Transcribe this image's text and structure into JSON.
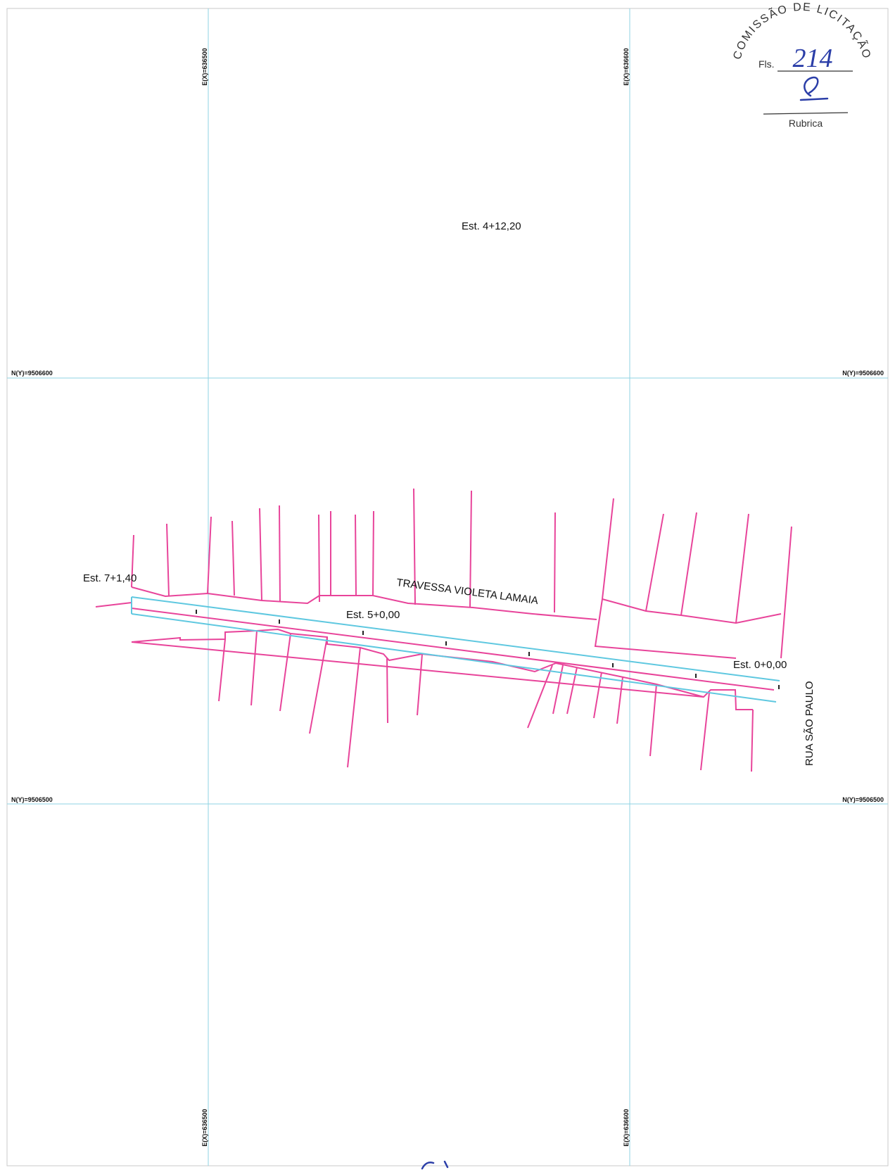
{
  "grid": {
    "easting_top_left": "E(X)=636500",
    "easting_top_right": "E(X)=636600",
    "easting_bottom_left": "E(X)=636500",
    "easting_bottom_right": "E(X)=636600",
    "northing_upper_left": "N(Y)=9506600",
    "northing_upper_right": "N(Y)=9506600",
    "northing_lower_left": "N(Y)=9506500",
    "northing_lower_right": "N(Y)=9506500"
  },
  "labels": {
    "station_a": "Est. 4+12,20",
    "station_b": "Est. 7+1,40",
    "station_c": "Est. 5+0,00",
    "station_d": "Est. 0+0,00",
    "street_main": "TRAVESSA VIOLETA LAMAIA",
    "street_cross": "RUA SÃO PAULO"
  },
  "stamp": {
    "title": "COMISSÃO DE LICITAÇÃO",
    "fls_label": "Fls.",
    "page_number": "214",
    "rubric_label": "Rubrica"
  },
  "colors": {
    "lot_lines": "#e8449a",
    "street_axis": "#5fc8e0",
    "grid": "#8fd3e3",
    "stamp_ink": "#2b3ea8"
  }
}
